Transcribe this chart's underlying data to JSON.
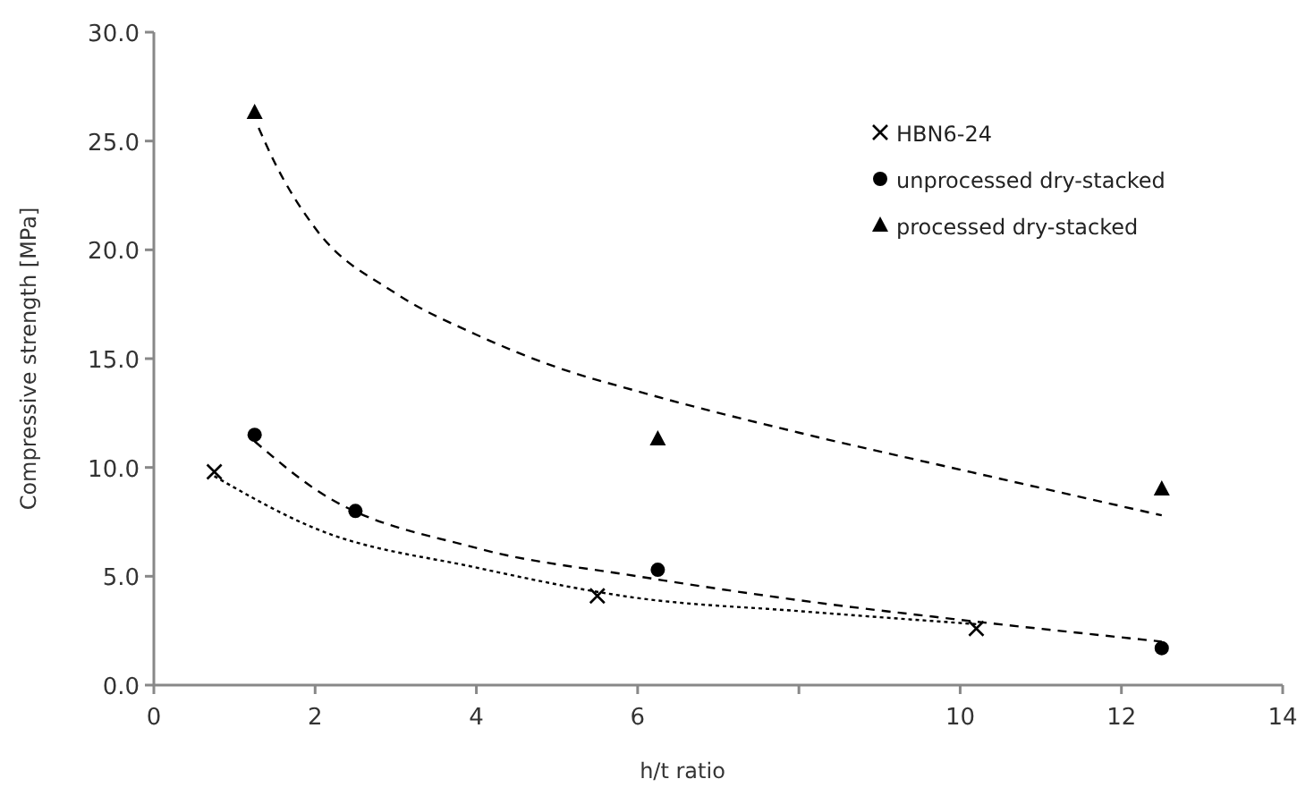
{
  "chart_data": {
    "type": "scatter",
    "xlabel": "h/t ratio",
    "ylabel": "Compressive strength [MPa]",
    "xlim": [
      0,
      14
    ],
    "xticks": [
      0,
      2,
      4,
      6,
      {
        "value": 8,
        "label": null
      },
      10,
      12,
      14
    ],
    "ylim": [
      0,
      30
    ],
    "yticks": [
      {
        "value": 0,
        "label": "0.0"
      },
      {
        "value": 5,
        "label": "5.0"
      },
      {
        "value": 10,
        "label": "10.0"
      },
      {
        "value": 15,
        "label": "15.0"
      },
      {
        "value": 20,
        "label": "20.0"
      },
      {
        "value": 25,
        "label": "25.0"
      },
      {
        "value": 30,
        "label": "30.0"
      }
    ],
    "grid": false,
    "legend": "top right",
    "series": [
      {
        "name": "HBN6-24",
        "color": "#000000",
        "marker": "cross",
        "x": [
          0.75,
          5.5,
          10.2
        ],
        "values": [
          9.8,
          4.1,
          2.6
        ]
      },
      {
        "name": "unprocessed dry-stacked",
        "color": "#000000",
        "marker": "circle",
        "x": [
          1.25,
          2.5,
          6.25,
          12.5
        ],
        "values": [
          11.5,
          8.0,
          5.3,
          1.7
        ]
      },
      {
        "name": "processed dry-stacked",
        "color": "#000000",
        "marker": "triangle",
        "x": [
          1.25,
          6.25,
          12.5
        ],
        "values": [
          26.3,
          11.3,
          9.0
        ]
      },
      {
        "type": "line",
        "color": "#000000",
        "marker": "none",
        "line_style": "dotted",
        "x": [
          0.75,
          2,
          4,
          6,
          8,
          10.2
        ],
        "values": [
          9.6,
          7.2,
          5.4,
          4.0,
          3.4,
          2.8
        ]
      },
      {
        "type": "line",
        "color": "#000000",
        "marker": "none",
        "line_style": "dashed",
        "x": [
          1.25,
          2,
          4,
          6,
          8,
          10,
          12.5
        ],
        "values": [
          11.2,
          9.0,
          6.3,
          5.0,
          3.9,
          3.0,
          2.0
        ]
      },
      {
        "type": "line",
        "color": "#000000",
        "marker": "none",
        "line_style": "dashed",
        "x": [
          1.3,
          1.5,
          2,
          3,
          4,
          5,
          6,
          8,
          10,
          12.5
        ],
        "values": [
          25.6,
          24.0,
          21.0,
          18.0,
          16.1,
          14.6,
          13.5,
          11.6,
          9.9,
          7.8
        ]
      }
    ]
  }
}
